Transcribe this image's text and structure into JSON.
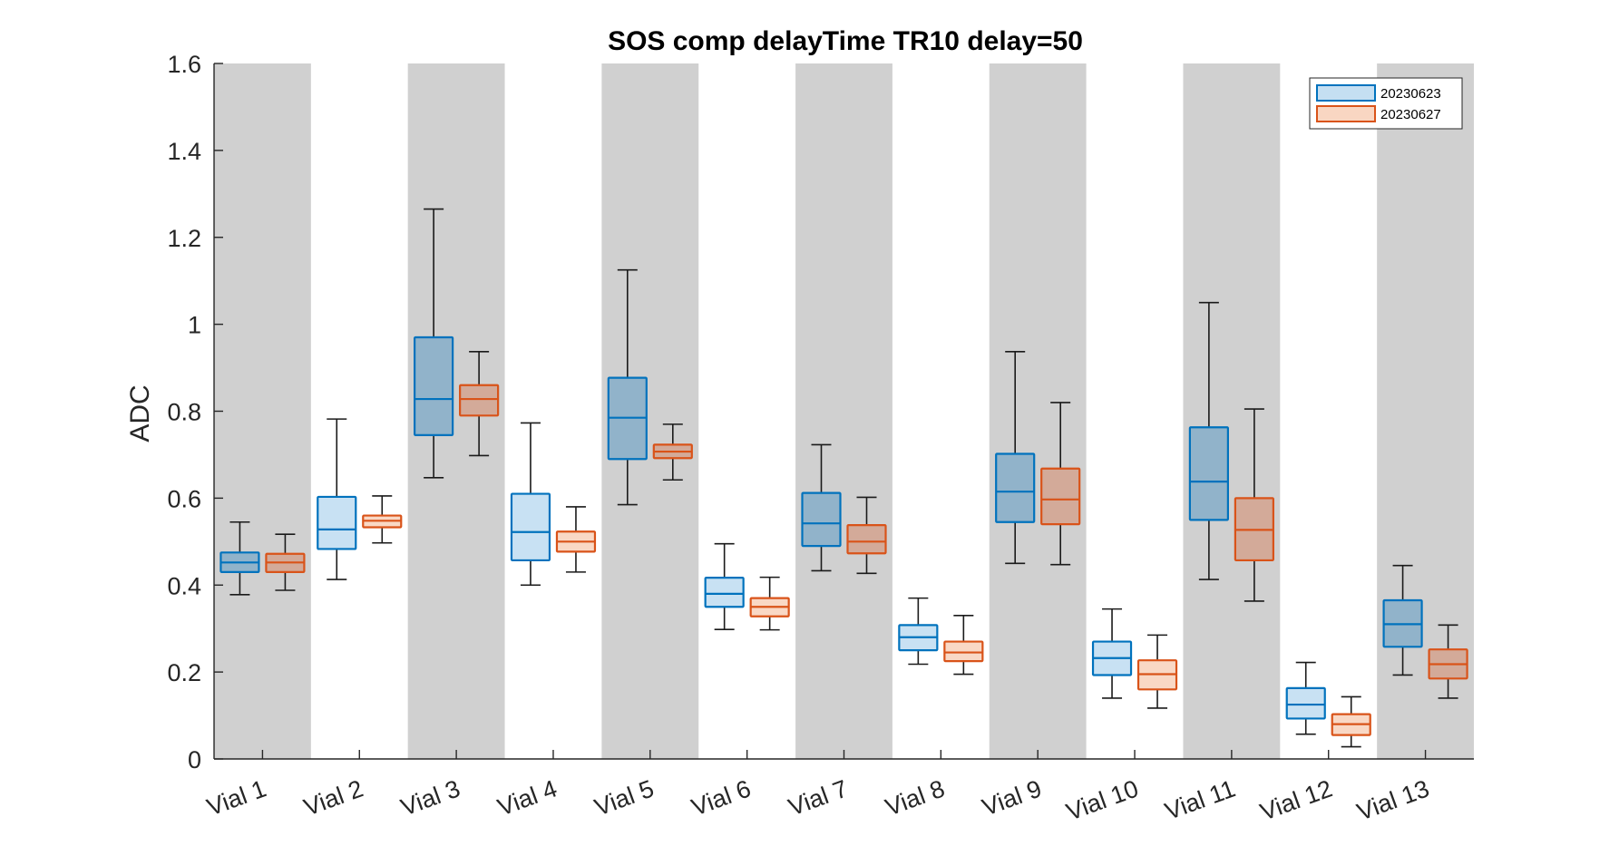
{
  "chart_data": {
    "type": "boxplot",
    "title": "SOS comp delayTime TR10 delay=50",
    "xlabel": "",
    "ylabel": "ADC",
    "ylim": [
      0,
      1.6
    ],
    "yticks": [
      "0",
      "0.2",
      "0.4",
      "0.6",
      "0.8",
      "1",
      "1.2",
      "1.4",
      "1.6"
    ],
    "categories": [
      "Vial 1",
      "Vial 2",
      "Vial 3",
      "Vial 4",
      "Vial 5",
      "Vial 6",
      "Vial 7",
      "Vial 8",
      "Vial 9",
      "Vial 10",
      "Vial 11",
      "Vial 12",
      "Vial 13"
    ],
    "shaded_categories": [
      1,
      3,
      5,
      7,
      9,
      11,
      13
    ],
    "grid": false,
    "legend_position": "top-right",
    "series": [
      {
        "name": "20230623",
        "color": "#0072BD",
        "fill": "#c5dff2",
        "boxes": [
          {
            "whisker_low": 0.378,
            "q1": 0.43,
            "median": 0.452,
            "q3": 0.475,
            "whisker_high": 0.545
          },
          {
            "whisker_low": 0.413,
            "q1": 0.483,
            "median": 0.528,
            "q3": 0.603,
            "whisker_high": 0.782
          },
          {
            "whisker_low": 0.647,
            "q1": 0.745,
            "median": 0.828,
            "q3": 0.97,
            "whisker_high": 1.265
          },
          {
            "whisker_low": 0.4,
            "q1": 0.457,
            "median": 0.522,
            "q3": 0.61,
            "whisker_high": 0.773
          },
          {
            "whisker_low": 0.585,
            "q1": 0.69,
            "median": 0.785,
            "q3": 0.877,
            "whisker_high": 1.125
          },
          {
            "whisker_low": 0.298,
            "q1": 0.35,
            "median": 0.38,
            "q3": 0.417,
            "whisker_high": 0.495
          },
          {
            "whisker_low": 0.433,
            "q1": 0.49,
            "median": 0.542,
            "q3": 0.612,
            "whisker_high": 0.723
          },
          {
            "whisker_low": 0.218,
            "q1": 0.25,
            "median": 0.28,
            "q3": 0.308,
            "whisker_high": 0.37
          },
          {
            "whisker_low": 0.45,
            "q1": 0.545,
            "median": 0.615,
            "q3": 0.702,
            "whisker_high": 0.937
          },
          {
            "whisker_low": 0.14,
            "q1": 0.193,
            "median": 0.232,
            "q3": 0.27,
            "whisker_high": 0.345
          },
          {
            "whisker_low": 0.413,
            "q1": 0.55,
            "median": 0.638,
            "q3": 0.763,
            "whisker_high": 1.05
          },
          {
            "whisker_low": 0.057,
            "q1": 0.093,
            "median": 0.125,
            "q3": 0.163,
            "whisker_high": 0.222
          },
          {
            "whisker_low": 0.193,
            "q1": 0.258,
            "median": 0.31,
            "q3": 0.365,
            "whisker_high": 0.445
          }
        ]
      },
      {
        "name": "20230627",
        "color": "#D95319",
        "fill": "#f9d6c2",
        "boxes": [
          {
            "whisker_low": 0.388,
            "q1": 0.43,
            "median": 0.452,
            "q3": 0.472,
            "whisker_high": 0.517
          },
          {
            "whisker_low": 0.497,
            "q1": 0.533,
            "median": 0.548,
            "q3": 0.56,
            "whisker_high": 0.605
          },
          {
            "whisker_low": 0.698,
            "q1": 0.79,
            "median": 0.828,
            "q3": 0.86,
            "whisker_high": 0.937
          },
          {
            "whisker_low": 0.43,
            "q1": 0.477,
            "median": 0.5,
            "q3": 0.523,
            "whisker_high": 0.58
          },
          {
            "whisker_low": 0.642,
            "q1": 0.692,
            "median": 0.707,
            "q3": 0.723,
            "whisker_high": 0.77
          },
          {
            "whisker_low": 0.297,
            "q1": 0.328,
            "median": 0.35,
            "q3": 0.37,
            "whisker_high": 0.418
          },
          {
            "whisker_low": 0.427,
            "q1": 0.473,
            "median": 0.5,
            "q3": 0.538,
            "whisker_high": 0.602
          },
          {
            "whisker_low": 0.195,
            "q1": 0.225,
            "median": 0.245,
            "q3": 0.27,
            "whisker_high": 0.33
          },
          {
            "whisker_low": 0.447,
            "q1": 0.54,
            "median": 0.597,
            "q3": 0.668,
            "whisker_high": 0.82
          },
          {
            "whisker_low": 0.117,
            "q1": 0.16,
            "median": 0.195,
            "q3": 0.227,
            "whisker_high": 0.285
          },
          {
            "whisker_low": 0.363,
            "q1": 0.457,
            "median": 0.527,
            "q3": 0.6,
            "whisker_high": 0.805
          },
          {
            "whisker_low": 0.028,
            "q1": 0.055,
            "median": 0.08,
            "q3": 0.103,
            "whisker_high": 0.143
          },
          {
            "whisker_low": 0.14,
            "q1": 0.185,
            "median": 0.218,
            "q3": 0.252,
            "whisker_high": 0.308
          }
        ]
      }
    ]
  }
}
